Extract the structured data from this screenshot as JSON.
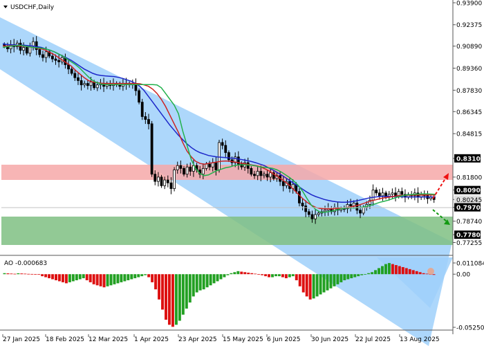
{
  "chart_title": "USDCHF,Daily",
  "colors": {
    "channel": "#9fd0fa",
    "resistance_zone": "#f6a8a8",
    "support_zone": "#7fbf83",
    "bull_candle": "#000000",
    "bear_candle": "#000000",
    "ma_fast": "#22b14c",
    "ma_mid": "#cc2222",
    "ma_slow": "#1d27c9",
    "ao_up": "#22a022",
    "ao_down": "#dd1111",
    "arrow_up": "#ee1111",
    "arrow_down": "#119911",
    "label_box": "#000000",
    "current_price_box": "#e0e0e0"
  },
  "chart_data": {
    "type": "candlestick",
    "symbol": "USDCHF",
    "timeframe": "Daily",
    "price_axis": {
      "range": [
        0.76895,
        0.939
      ],
      "ticks": [
        "0.93900",
        "0.92375",
        "0.90890",
        "0.89360",
        "0.87830",
        "0.86345",
        "0.84815",
        "0.83100",
        "0.81800",
        "0.80900",
        "0.80245",
        "0.79700",
        "0.78740",
        "0.77800",
        "0.77255"
      ],
      "boxed_levels": [
        "0.83100",
        "0.80900",
        "0.79700",
        "0.77800"
      ],
      "current_price": "0.80245"
    },
    "date_axis": [
      "27 Jan 2025",
      "18 Feb 2025",
      "12 Mar 2025",
      "1 Apr 2025",
      "23 Apr 2025",
      "15 May 2025",
      "6 Jun 2025",
      "30 Jun 2025",
      "22 Jul 2025",
      "13 Aug 2025"
    ],
    "zones": [
      {
        "kind": "resistance",
        "from": 0.809,
        "to": 0.831
      },
      {
        "kind": "support",
        "from": 0.778,
        "to": 0.797
      }
    ],
    "close_series": [
      0.909,
      0.907,
      0.91,
      0.9085,
      0.911,
      0.906,
      0.908,
      0.904,
      0.909,
      0.912,
      0.9065,
      0.903,
      0.901,
      0.905,
      0.902,
      0.9,
      0.899,
      0.898,
      0.901,
      0.896,
      0.893,
      0.89,
      0.887,
      0.885,
      0.882,
      0.883,
      0.8815,
      0.884,
      0.88,
      0.882,
      0.883,
      0.881,
      0.8825,
      0.8815,
      0.883,
      0.882,
      0.881,
      0.883,
      0.8825,
      0.882,
      0.883,
      0.878,
      0.87,
      0.86,
      0.858,
      0.855,
      0.82,
      0.815,
      0.818,
      0.812,
      0.816,
      0.814,
      0.81,
      0.823,
      0.826,
      0.824,
      0.82,
      0.825,
      0.822,
      0.826,
      0.823,
      0.82,
      0.824,
      0.827,
      0.825,
      0.828,
      0.823,
      0.842,
      0.84,
      0.835,
      0.83,
      0.828,
      0.832,
      0.827,
      0.825,
      0.828,
      0.824,
      0.82,
      0.819,
      0.822,
      0.819,
      0.82,
      0.818,
      0.821,
      0.817,
      0.819,
      0.815,
      0.812,
      0.815,
      0.81,
      0.813,
      0.808,
      0.8,
      0.798,
      0.794,
      0.792,
      0.789,
      0.792,
      0.793,
      0.794,
      0.795,
      0.796,
      0.794,
      0.797,
      0.795,
      0.796,
      0.796,
      0.799,
      0.798,
      0.8,
      0.795,
      0.793,
      0.797,
      0.799,
      0.802,
      0.809,
      0.807,
      0.805,
      0.807,
      0.804,
      0.806,
      0.807,
      0.805,
      0.808,
      0.806,
      0.804,
      0.806,
      0.805,
      0.807,
      0.804,
      0.806,
      0.805,
      0.803,
      0.804,
      0.8024
    ],
    "ma_fast_values": [
      0.908,
      0.9085,
      0.909,
      0.9092,
      0.9095,
      0.909,
      0.9085,
      0.908,
      0.9078,
      0.9075,
      0.907,
      0.9062,
      0.905,
      0.9035,
      0.902,
      0.9,
      0.898,
      0.896,
      0.8935,
      0.8905,
      0.8875,
      0.885,
      0.8835,
      0.8825,
      0.8822,
      0.8822,
      0.8822,
      0.8822,
      0.8822,
      0.8822,
      0.8822,
      0.8822,
      0.8822,
      0.8822,
      0.8822,
      0.8822,
      0.882,
      0.88,
      0.876,
      0.872,
      0.868,
      0.862,
      0.85,
      0.84,
      0.83,
      0.824,
      0.8205,
      0.819,
      0.8195,
      0.821,
      0.8225,
      0.8235,
      0.8245,
      0.825,
      0.826,
      0.8265,
      0.8265,
      0.8265,
      0.8262,
      0.8258,
      0.825,
      0.8248,
      0.8245,
      0.824,
      0.823,
      0.8215,
      0.8195,
      0.8175,
      0.815,
      0.812,
      0.808,
      0.803,
      0.7985,
      0.7955,
      0.7938,
      0.7935,
      0.794,
      0.7945,
      0.7952,
      0.796,
      0.7965,
      0.7966,
      0.7965,
      0.7968,
      0.7972,
      0.7978,
      0.7985,
      0.7995,
      0.8005,
      0.8012,
      0.802,
      0.803,
      0.804,
      0.8048,
      0.8055,
      0.8058,
      0.806,
      0.8062,
      0.8063,
      0.8063,
      0.8062,
      0.806
    ],
    "ma_mid_values": [
      0.909,
      0.909,
      0.9092,
      0.9092,
      0.909,
      0.9088,
      0.9085,
      0.908,
      0.9075,
      0.907,
      0.906,
      0.9045,
      0.903,
      0.901,
      0.899,
      0.897,
      0.895,
      0.892,
      0.8895,
      0.887,
      0.885,
      0.884,
      0.8835,
      0.8832,
      0.883,
      0.883,
      0.883,
      0.883,
      0.883,
      0.883,
      0.883,
      0.883,
      0.8828,
      0.882,
      0.881,
      0.879,
      0.876,
      0.872,
      0.867,
      0.861,
      0.855,
      0.849,
      0.842,
      0.836,
      0.832,
      0.829,
      0.8275,
      0.827,
      0.8275,
      0.828,
      0.8285,
      0.829,
      0.8292,
      0.829,
      0.8285,
      0.828,
      0.8275,
      0.827,
      0.8265,
      0.826,
      0.8252,
      0.824,
      0.8225,
      0.8205,
      0.8185,
      0.8165,
      0.8145,
      0.812,
      0.809,
      0.806,
      0.803,
      0.8005,
      0.7985,
      0.797,
      0.7962,
      0.796,
      0.796,
      0.796,
      0.7962,
      0.7965,
      0.7968,
      0.7972,
      0.7978,
      0.7985,
      0.7995,
      0.8005,
      0.8015,
      0.8022,
      0.803,
      0.8036,
      0.804,
      0.8045,
      0.805,
      0.8052,
      0.8054,
      0.8055,
      0.8056,
      0.8056,
      0.8056,
      0.8056,
      0.8056,
      0.8055
    ],
    "ma_slow_values": [
      0.9105,
      0.91,
      0.9098,
      0.9097,
      0.9095,
      0.9095,
      0.9092,
      0.909,
      0.9085,
      0.908,
      0.907,
      0.906,
      0.905,
      0.9035,
      0.902,
      0.9005,
      0.899,
      0.897,
      0.895,
      0.893,
      0.8915,
      0.89,
      0.889,
      0.8885,
      0.8882,
      0.888,
      0.8878,
      0.8872,
      0.8865,
      0.8855,
      0.8845,
      0.883,
      0.881,
      0.878,
      0.874,
      0.87,
      0.866,
      0.862,
      0.858,
      0.854,
      0.8505,
      0.847,
      0.844,
      0.841,
      0.8385,
      0.8365,
      0.835,
      0.834,
      0.833,
      0.8325,
      0.832,
      0.8318,
      0.8315,
      0.8312,
      0.831,
      0.8305,
      0.83,
      0.8295,
      0.8288,
      0.828,
      0.827,
      0.826,
      0.8245,
      0.823,
      0.8212,
      0.8195,
      0.8175,
      0.8155,
      0.8135,
      0.8115,
      0.8095,
      0.8075,
      0.8058,
      0.8045,
      0.8035,
      0.8025,
      0.8018,
      0.8012,
      0.8008,
      0.8005,
      0.8005,
      0.8008,
      0.8012,
      0.8018,
      0.8025,
      0.8032,
      0.8038,
      0.8042,
      0.8045,
      0.8046,
      0.8046,
      0.8045,
      0.8044,
      0.8043,
      0.8042,
      0.8042,
      0.8042,
      0.8042,
      0.8042,
      0.8042,
      0.8042,
      0.8042
    ]
  },
  "ao_panel": {
    "label": "AO -0.000683",
    "ticks": [
      "0.011084",
      "0.00",
      "-0.052507"
    ],
    "range": [
      -0.052507,
      0.011084
    ],
    "bars": [
      0.001,
      0.0008,
      0.0006,
      0.0004,
      0.0009,
      0.0007,
      0.0005,
      0.0003,
      0.0002,
      0.0001,
      -0.0005,
      -0.002,
      -0.003,
      -0.004,
      -0.005,
      -0.006,
      -0.007,
      -0.008,
      -0.009,
      -0.008,
      -0.007,
      -0.006,
      -0.005,
      -0.004,
      -0.006,
      -0.008,
      -0.01,
      -0.011,
      -0.012,
      -0.013,
      -0.012,
      -0.011,
      -0.01,
      -0.009,
      -0.008,
      -0.007,
      -0.006,
      -0.005,
      -0.004,
      -0.003,
      -0.002,
      -0.001,
      -0.003,
      -0.008,
      -0.015,
      -0.025,
      -0.035,
      -0.045,
      -0.05,
      -0.052,
      -0.05,
      -0.046,
      -0.04,
      -0.034,
      -0.028,
      -0.022,
      -0.018,
      -0.016,
      -0.015,
      -0.013,
      -0.011,
      -0.009,
      -0.007,
      -0.005,
      -0.003,
      -0.001,
      0.001,
      0.002,
      0.003,
      0.0025,
      0.002,
      0.0015,
      0.001,
      0.0005,
      -0.0005,
      -0.001,
      -0.002,
      -0.003,
      -0.003,
      -0.002,
      -0.002,
      -0.003,
      -0.004,
      -0.003,
      -0.002,
      -0.006,
      -0.012,
      -0.018,
      -0.022,
      -0.025,
      -0.024,
      -0.022,
      -0.02,
      -0.018,
      -0.016,
      -0.014,
      -0.012,
      -0.01,
      -0.008,
      -0.006,
      -0.005,
      -0.004,
      -0.003,
      -0.002,
      -0.001,
      0.0,
      0.001,
      0.002,
      0.004,
      0.006,
      0.008,
      0.01,
      0.011,
      0.01,
      0.009,
      0.008,
      0.007,
      0.006,
      0.005,
      0.004,
      0.003,
      0.002,
      0.001,
      0.0005,
      -0.0003,
      -0.0007
    ]
  }
}
